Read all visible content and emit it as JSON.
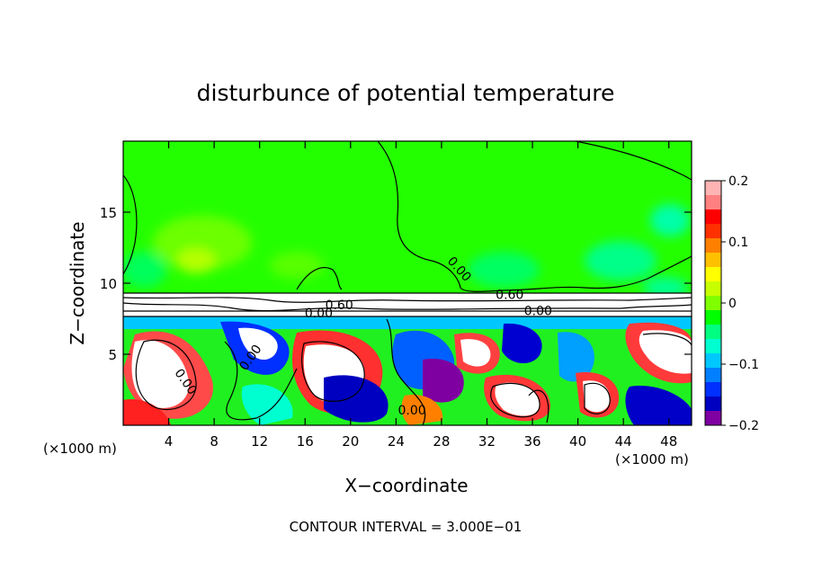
{
  "chart_data": {
    "type": "heatmap",
    "title": "disturbunce of potential temperature",
    "xlabel": "X−coordinate",
    "ylabel": "Z−coordinate",
    "x_unit_left": "(×1000 m)",
    "x_unit_right": "(×1000 m)",
    "footer": "CONTOUR INTERVAL = 3.000E−01",
    "xlim": [
      0,
      50
    ],
    "ylim": [
      0,
      20
    ],
    "x_ticks": [
      4,
      8,
      12,
      16,
      20,
      24,
      28,
      32,
      36,
      40,
      44,
      48
    ],
    "x_tick_labels": [
      "4",
      "8",
      "12",
      "16",
      "20",
      "24",
      "28",
      "32",
      "36",
      "40",
      "44",
      "48"
    ],
    "y_ticks": [
      5,
      10,
      15
    ],
    "y_tick_labels": [
      "5",
      "10",
      "15"
    ],
    "colorbar": {
      "range": [
        -0.2,
        0.2
      ],
      "tick_values": [
        -0.2,
        -0.1,
        0,
        0.1,
        0.2
      ],
      "tick_labels": [
        "−0.2",
        "−0.1",
        "0",
        "0.1",
        "0.2"
      ],
      "colors": [
        "#7f00a0",
        "#0000c0",
        "#0030ff",
        "#0080ff",
        "#00c8ff",
        "#00ffd0",
        "#00ff80",
        "#00ff00",
        "#80ff00",
        "#c8ff00",
        "#ffff00",
        "#ffc000",
        "#ff8000",
        "#ff3000",
        "#ff0000",
        "#ff8080",
        "#ffb4b4"
      ]
    },
    "contour_labels": [
      {
        "text": "0.00",
        "x": 29.3,
        "z": 10.8,
        "rotate": 48
      },
      {
        "text": "0.60",
        "x": 34,
        "z": 8.9,
        "rotate": 0
      },
      {
        "text": "0.00",
        "x": 36.5,
        "z": 7.75,
        "rotate": 0
      },
      {
        "text": "0.60",
        "x": 19,
        "z": 8.15,
        "rotate": 0
      },
      {
        "text": "0.00",
        "x": 17.2,
        "z": 7.6,
        "rotate": 0
      },
      {
        "text": "0.00",
        "x": 11.5,
        "z": 4.6,
        "rotate": -55
      },
      {
        "text": "0.00",
        "x": 5.2,
        "z": 2.9,
        "rotate": 55
      },
      {
        "text": "0.00",
        "x": 25.4,
        "z": 0.75,
        "rotate": 0
      }
    ]
  }
}
